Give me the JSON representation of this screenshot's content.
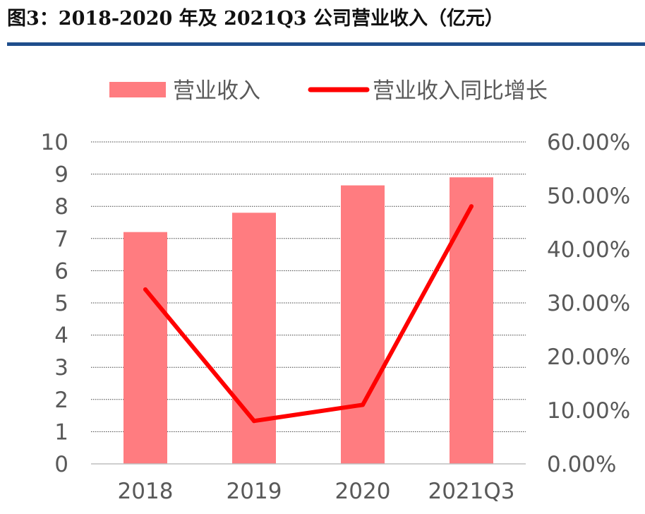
{
  "title": "图3：2018-2020 年及 2021Q3 公司营业收入（亿元）",
  "chart_data": {
    "type": "bar",
    "categories": [
      "2018",
      "2019",
      "2020",
      "2021Q3"
    ],
    "series": [
      {
        "name": "营业收入",
        "type": "bar",
        "axis": "left",
        "color": "#ff7c80",
        "values": [
          7.2,
          7.8,
          8.65,
          8.9
        ]
      },
      {
        "name": "营业收入同比增长",
        "type": "line",
        "axis": "right",
        "color": "#ff0000",
        "values": [
          32.5,
          8.0,
          11.0,
          48.0
        ]
      }
    ],
    "y_left": {
      "ylim": [
        0,
        10
      ],
      "ticks": [
        "0",
        "1",
        "2",
        "3",
        "4",
        "5",
        "6",
        "7",
        "8",
        "9",
        "10"
      ]
    },
    "y_right": {
      "ylim": [
        0,
        60
      ],
      "ticks": [
        "0.00%",
        "10.00%",
        "20.00%",
        "30.00%",
        "40.00%",
        "50.00%",
        "60.00%"
      ]
    },
    "grid": true,
    "legend_position": "top"
  }
}
